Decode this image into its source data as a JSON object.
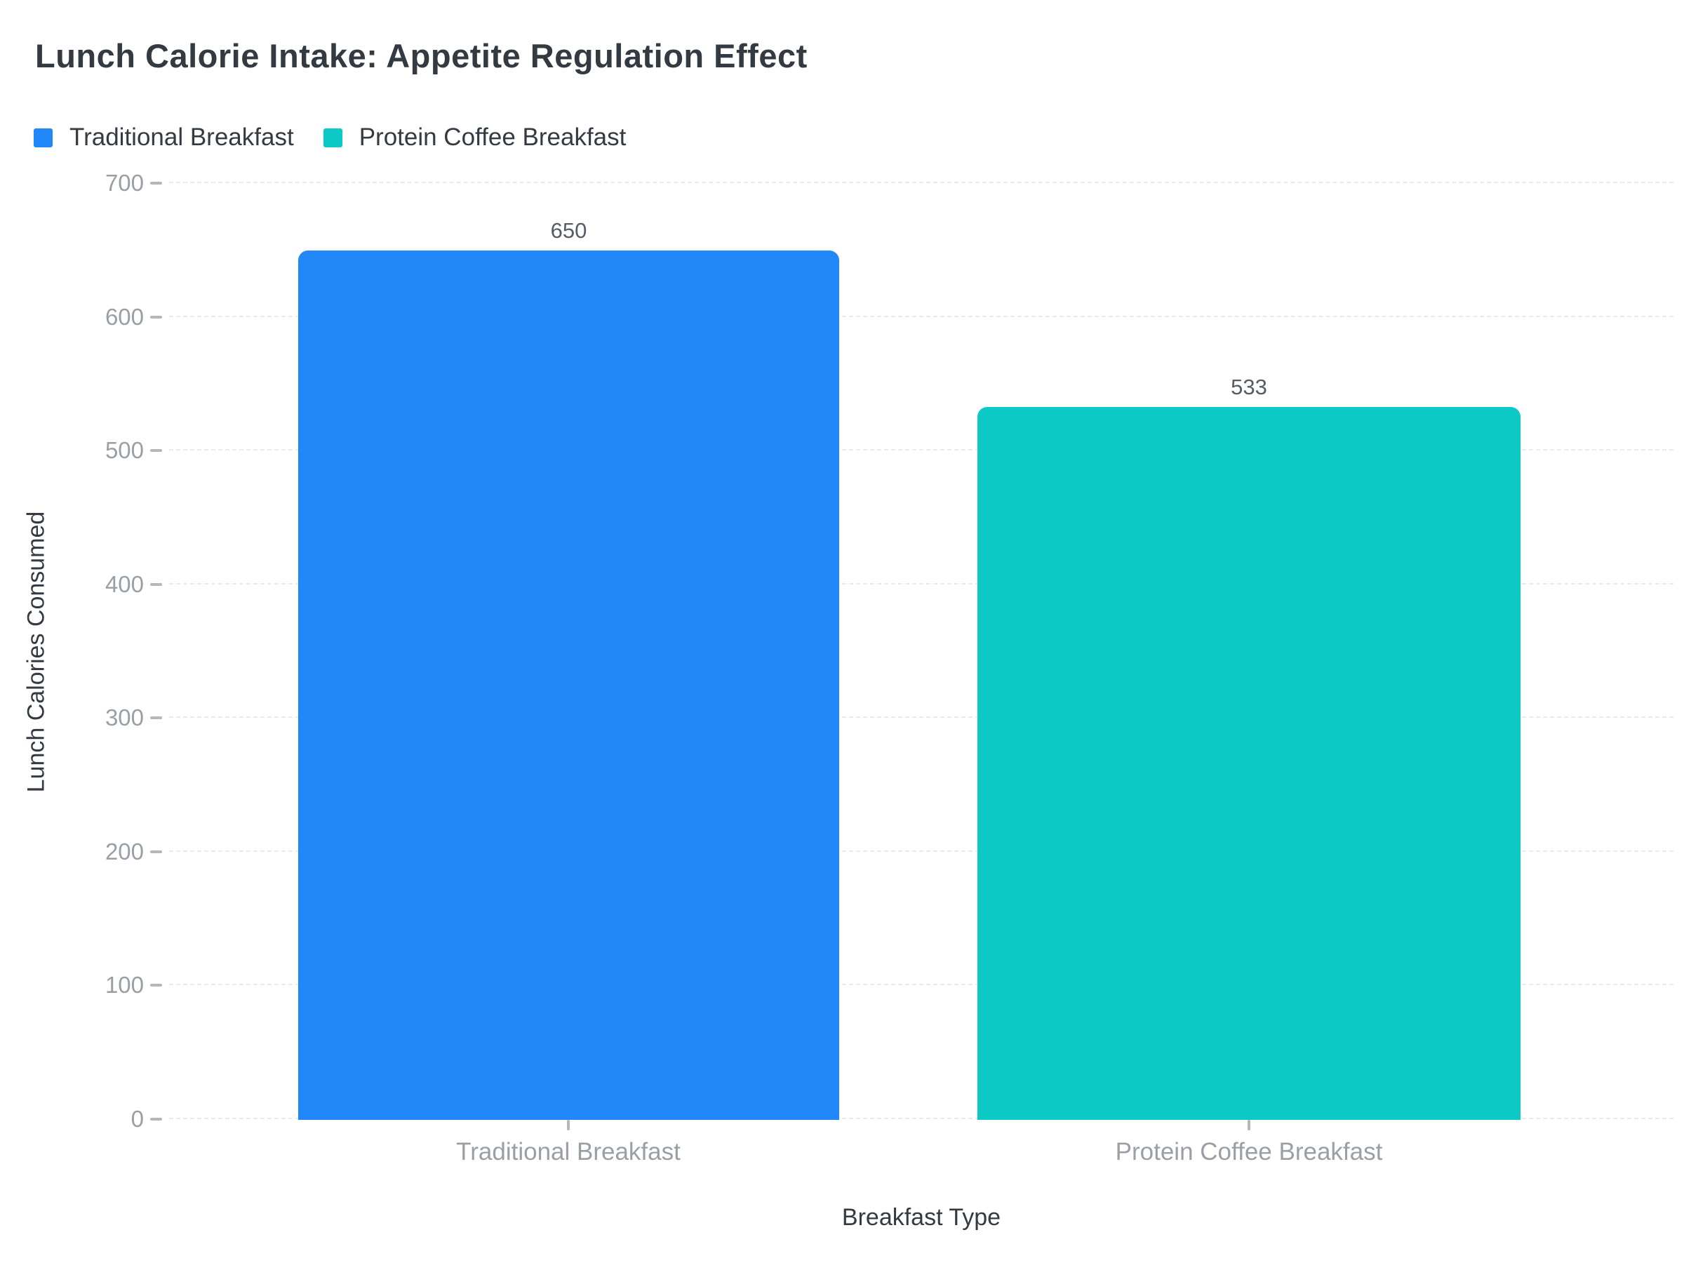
{
  "title": "Lunch Calorie Intake: Appetite Regulation Effect",
  "legend": {
    "position": "top-left",
    "items": [
      {
        "label": "Traditional Breakfast",
        "color": "#2288f9"
      },
      {
        "label": "Protein Coffee Breakfast",
        "color": "#0cc9c6"
      }
    ]
  },
  "colors": {
    "bar_blue": "#2288f9",
    "bar_teal": "#0cc9c6",
    "title_text": "#343a42",
    "axis_label_text": "#343a42",
    "tick_text": "#999fa6",
    "value_label_text": "#555c63",
    "gridline": "#e8eaec",
    "background": "#ffffff"
  },
  "chart_data": {
    "type": "bar",
    "title": "Lunch Calorie Intake: Appetite Regulation Effect",
    "categories": [
      "Traditional Breakfast",
      "Protein Coffee Breakfast"
    ],
    "values": [
      650,
      533
    ],
    "series": [
      {
        "name": "Traditional Breakfast",
        "value": 650,
        "color": "#2288f9"
      },
      {
        "name": "Protein Coffee Breakfast",
        "value": 533,
        "color": "#0cc9c6"
      }
    ],
    "xlabel": "Breakfast Type",
    "ylabel": "Lunch Calories Consumed",
    "ylim": [
      0,
      700
    ],
    "y_ticks": [
      0,
      100,
      200,
      300,
      400,
      500,
      600,
      700
    ],
    "grid": "horizontal-dashed",
    "bar_corner": "rounded-top",
    "legend_position": "top-left"
  }
}
